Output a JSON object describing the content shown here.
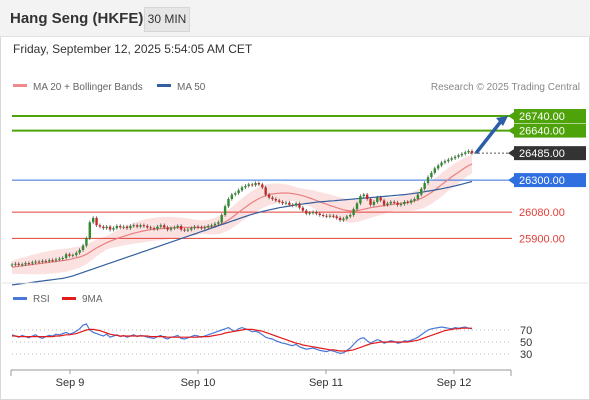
{
  "header": {
    "title": "Hang Seng (HKFE)",
    "timeframe": "30 MIN",
    "datetime": "Friday, September 12, 2025 5:54:05 AM CET"
  },
  "chart_data": [
    {
      "type": "line",
      "panel": "price",
      "legend": [
        {
          "name": "MA 20 + Bollinger Bands",
          "color": "#f08a8a"
        },
        {
          "name": "MA 50",
          "color": "#335f9e"
        }
      ],
      "credit": "Research © 2025 Trading Central",
      "x_ticks": [
        "Sep 9",
        "Sep 10",
        "Sep 11",
        "Sep 12"
      ],
      "ylim": [
        25600,
        26850
      ],
      "levels": [
        {
          "value": 26740,
          "label": "26740.00",
          "kind": "resistance",
          "color": "#4ea30a"
        },
        {
          "value": 26640,
          "label": "26640.00",
          "kind": "resistance",
          "color": "#4ea30a"
        },
        {
          "value": 26485,
          "label": "26485.00",
          "kind": "last",
          "color": "#333333"
        },
        {
          "value": 26300,
          "label": "26300.00",
          "kind": "pivot",
          "color": "#2f6fe0"
        },
        {
          "value": 26080,
          "label": "26080.00",
          "kind": "support",
          "color": "#e0403a"
        },
        {
          "value": 25900,
          "label": "25900.00",
          "kind": "support",
          "color": "#e0403a"
        }
      ],
      "close": [
        25720,
        25725,
        25718,
        25722,
        25730,
        25728,
        25735,
        25740,
        25738,
        25745,
        25742,
        25750,
        25748,
        25755,
        25760,
        25765,
        25790,
        25780,
        25785,
        25800,
        25820,
        25850,
        25900,
        26010,
        26040,
        25990,
        25980,
        25970,
        25980,
        25960,
        25970,
        25985,
        25975,
        25980,
        25970,
        25985,
        25990,
        25980,
        25990,
        25985,
        25975,
        25970,
        25965,
        25980,
        25990,
        25975,
        25960,
        25970,
        25975,
        25985,
        25960,
        25955,
        25960,
        25970,
        25980,
        25975,
        25970,
        25975,
        25985,
        25990,
        26000,
        26010,
        26060,
        26120,
        26170,
        26200,
        26210,
        26230,
        26250,
        26260,
        26270,
        26265,
        26280,
        26270,
        26250,
        26200,
        26180,
        26170,
        26160,
        26150,
        26140,
        26145,
        26130,
        26125,
        26140,
        26110,
        26090,
        26070,
        26075,
        26080,
        26070,
        26060,
        26055,
        26050,
        26055,
        26050,
        26040,
        26025,
        26035,
        26050,
        26060,
        26100,
        26140,
        26190,
        26200,
        26170,
        26130,
        26150,
        26180,
        26160,
        26130,
        26140,
        26150,
        26145,
        26130,
        26135,
        26150,
        26145,
        26160,
        26170,
        26200,
        26240,
        26280,
        26320,
        26350,
        26380,
        26400,
        26420,
        26430,
        26440,
        26450,
        26460,
        26470,
        26480,
        26490,
        26500,
        26485
      ],
      "ma20": [
        25700,
        25705,
        25708,
        25711,
        25714,
        25717,
        25720,
        25723,
        25726,
        25729,
        25732,
        25735,
        25738,
        25741,
        25744,
        25747,
        25750,
        25755,
        25760,
        25766,
        25772,
        25780,
        25790,
        25805,
        25820,
        25834,
        25846,
        25858,
        25870,
        25880,
        25889,
        25898,
        25906,
        25914,
        25921,
        25928,
        25935,
        25941,
        25946,
        25951,
        25955,
        25959,
        25962,
        25965,
        25967,
        25969,
        25971,
        25972,
        25973,
        25974,
        25974,
        25974,
        25974,
        25974,
        25974,
        25975,
        25976,
        25977,
        25978,
        25980,
        25984,
        25990,
        26000,
        26012,
        26026,
        26042,
        26060,
        26078,
        26096,
        26114,
        26130,
        26146,
        26160,
        26173,
        26184,
        26193,
        26200,
        26205,
        26208,
        26210,
        26211,
        26211,
        26210,
        26207,
        26203,
        26198,
        26192,
        26185,
        26177,
        26169,
        26160,
        26151,
        26142,
        26134,
        26126,
        26118,
        26110,
        26103,
        26096,
        26091,
        26088,
        26088,
        26090,
        26095,
        26100,
        26105,
        26110,
        26114,
        26118,
        26122,
        26125,
        26128,
        26131,
        26134,
        26137,
        26140,
        26144,
        26148,
        26153,
        26158,
        26165,
        26175,
        26186,
        26200,
        26215,
        26232,
        26250,
        26268,
        26286,
        26304,
        26322,
        26338,
        26354,
        26370,
        26386,
        26400,
        26410
      ],
      "ma50": [
        25580,
        25583,
        25586,
        25589,
        25592,
        25595,
        25598,
        25601,
        25604,
        25607,
        25610,
        25613,
        25616,
        25619,
        25622,
        25625,
        25630,
        25636,
        25642,
        25650,
        25658,
        25666,
        25674,
        25682,
        25690,
        25698,
        25706,
        25714,
        25722,
        25730,
        25738,
        25746,
        25754,
        25762,
        25770,
        25778,
        25786,
        25794,
        25802,
        25810,
        25818,
        25826,
        25834,
        25842,
        25850,
        25858,
        25866,
        25874,
        25882,
        25890,
        25898,
        25906,
        25914,
        25922,
        25930,
        25938,
        25946,
        25954,
        25962,
        25970,
        25978,
        25986,
        25994,
        26002,
        26010,
        26018,
        26026,
        26034,
        26042,
        26050,
        26058,
        26065,
        26072,
        26078,
        26084,
        26090,
        26095,
        26100,
        26105,
        26110,
        26114,
        26118,
        26122,
        26126,
        26130,
        26133,
        26136,
        26139,
        26142,
        26145,
        26148,
        26150,
        26152,
        26154,
        26156,
        26158,
        26160,
        26162,
        26164,
        26166,
        26168,
        26170,
        26172,
        26174,
        26176,
        26178,
        26180,
        26182,
        26184,
        26186,
        26188,
        26190,
        26192,
        26194,
        26196,
        26198,
        26200,
        26203,
        26206,
        26209,
        26212,
        26216,
        26220,
        26224,
        26228,
        26232,
        26236,
        26240,
        26245,
        26250,
        26255,
        26260,
        26266,
        26272,
        26278,
        26284,
        26290
      ],
      "forecast_target": 26740
    },
    {
      "type": "line",
      "panel": "indicator",
      "legend": [
        {
          "name": "RSI",
          "color": "#4a78d6"
        },
        {
          "name": "9MA",
          "color": "#e21b1b"
        }
      ],
      "y_ticks": [
        70,
        50,
        30
      ],
      "ylim": [
        10,
        90
      ],
      "rsi": [
        62,
        60,
        58,
        61,
        59,
        57,
        60,
        62,
        58,
        56,
        59,
        61,
        60,
        63,
        62,
        64,
        66,
        63,
        65,
        68,
        72,
        78,
        80,
        70,
        66,
        64,
        62,
        60,
        63,
        58,
        60,
        62,
        59,
        61,
        58,
        60,
        62,
        59,
        61,
        60,
        58,
        57,
        56,
        59,
        61,
        57,
        55,
        58,
        59,
        61,
        56,
        55,
        57,
        59,
        61,
        60,
        58,
        60,
        62,
        64,
        66,
        68,
        70,
        72,
        74,
        70,
        68,
        72,
        74,
        72,
        70,
        67,
        68,
        66,
        62,
        58,
        56,
        55,
        52,
        50,
        48,
        47,
        45,
        44,
        46,
        42,
        40,
        38,
        39,
        40,
        38,
        36,
        35,
        34,
        36,
        35,
        33,
        31,
        32,
        36,
        40,
        46,
        52,
        56,
        57,
        52,
        48,
        51,
        54,
        52,
        48,
        50,
        52,
        51,
        48,
        49,
        52,
        51,
        53,
        55,
        58,
        62,
        66,
        70,
        72,
        73,
        74,
        75,
        74,
        73,
        72,
        74,
        73,
        74,
        75,
        73,
        72
      ],
      "ma9": [
        60,
        60,
        59,
        59,
        59,
        59,
        59,
        59,
        59,
        59,
        59,
        59,
        59,
        60,
        60,
        61,
        62,
        62,
        63,
        64,
        66,
        68,
        70,
        71,
        71,
        70,
        69,
        67,
        65,
        63,
        62,
        61,
        60,
        60,
        60,
        60,
        60,
        60,
        60,
        60,
        60,
        59,
        59,
        59,
        59,
        59,
        58,
        58,
        58,
        58,
        58,
        58,
        58,
        58,
        58,
        58,
        59,
        59,
        59,
        60,
        61,
        62,
        63,
        65,
        66,
        67,
        68,
        69,
        70,
        71,
        71,
        71,
        70,
        69,
        68,
        66,
        64,
        62,
        60,
        58,
        56,
        54,
        52,
        50,
        48,
        47,
        45,
        44,
        43,
        42,
        41,
        40,
        39,
        38,
        37,
        37,
        36,
        35,
        35,
        35,
        36,
        37,
        39,
        41,
        43,
        45,
        47,
        48,
        49,
        50,
        50,
        50,
        50,
        50,
        50,
        50,
        50,
        50,
        51,
        52,
        53,
        55,
        57,
        59,
        61,
        63,
        65,
        67,
        69,
        70,
        71,
        72,
        72,
        73,
        73,
        73,
        73
      ]
    }
  ]
}
